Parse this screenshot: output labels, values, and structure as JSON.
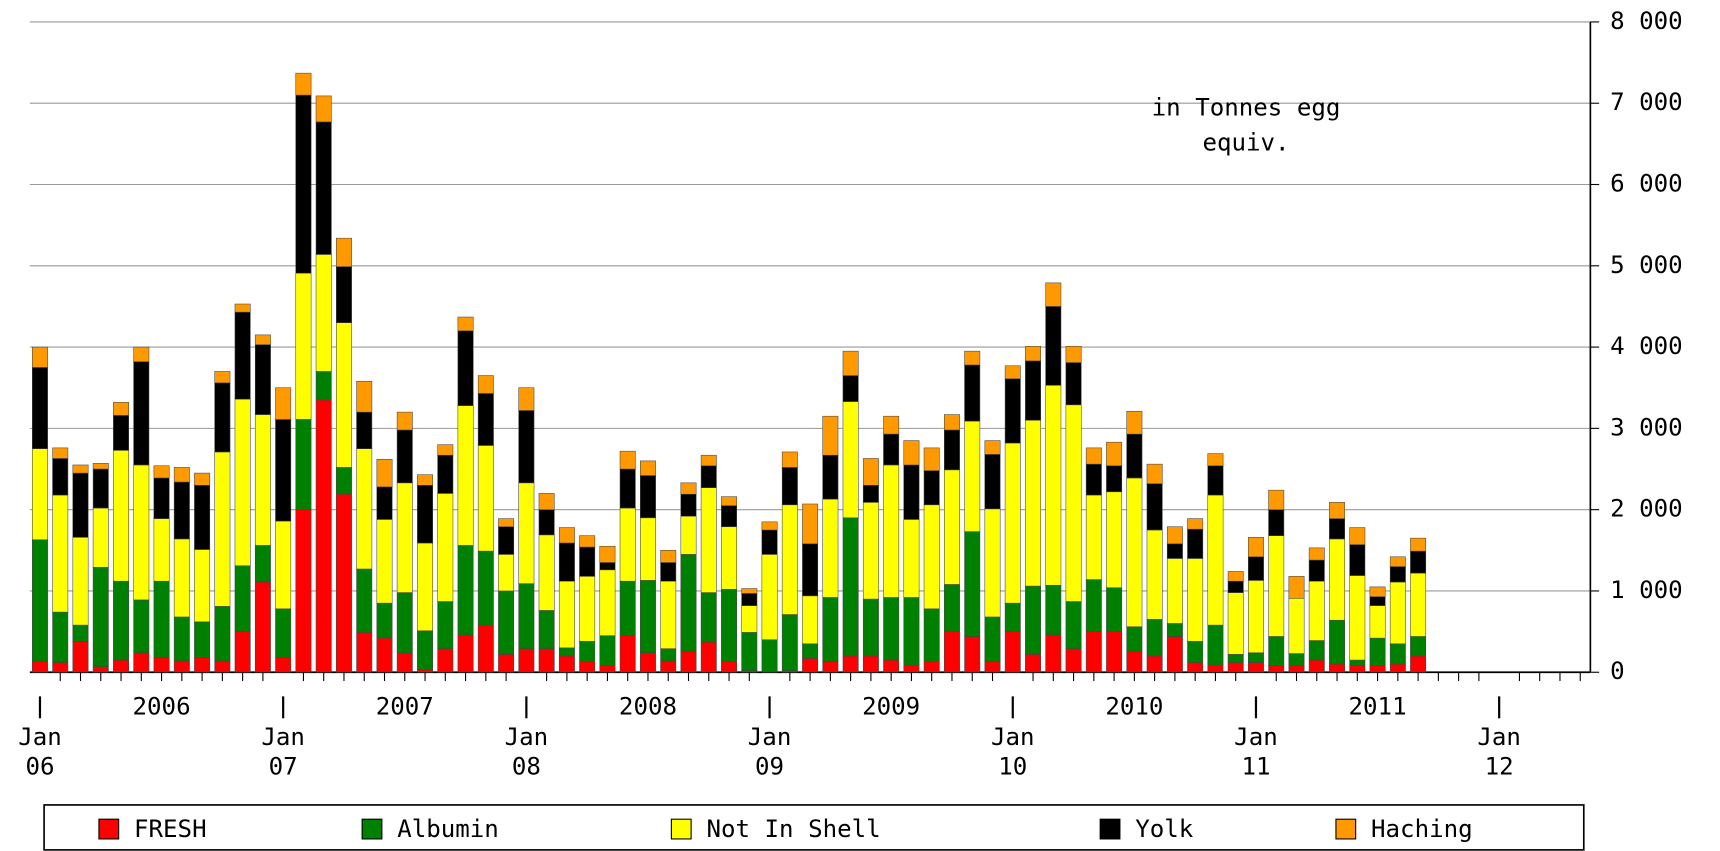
{
  "chart_data": {
    "type": "stacked_bar",
    "annotation": [
      "in Tonnes egg",
      "equiv."
    ],
    "categories": [
      "Jan 06",
      null,
      null,
      null,
      null,
      null,
      null,
      null,
      null,
      null,
      null,
      null,
      "Jan 07",
      null,
      null,
      null,
      null,
      null,
      null,
      null,
      null,
      null,
      null,
      null,
      "Jan 08",
      null,
      null,
      null,
      null,
      null,
      null,
      null,
      null,
      null,
      null,
      null,
      "Jan 09",
      null,
      null,
      null,
      null,
      null,
      null,
      null,
      null,
      null,
      null,
      null,
      "Jan 10",
      null,
      null,
      null,
      null,
      null,
      null,
      null,
      null,
      null,
      null,
      null,
      "Jan 11",
      null,
      null,
      null,
      null,
      null,
      null,
      null,
      null,
      null,
      null,
      null,
      "Jan 12",
      null,
      null,
      null,
      null
    ],
    "years": [
      "2006",
      "2007",
      "2008",
      "2009",
      "2010",
      "2011"
    ],
    "series": [
      {
        "name": "FRESH",
        "color": "#ff0000",
        "values": [
          130,
          120,
          380,
          70,
          150,
          240,
          180,
          140,
          180,
          140,
          500,
          1110,
          180,
          2000,
          3350,
          2190,
          490,
          420,
          240,
          30,
          290,
          460,
          580,
          220,
          290,
          290,
          200,
          130,
          80,
          450,
          240,
          140,
          260,
          370,
          130,
          20,
          10,
          20,
          170,
          130,
          200,
          200,
          150,
          90,
          130,
          500,
          440,
          130,
          500,
          220,
          460,
          290,
          500,
          500,
          260,
          200,
          440,
          120,
          90,
          120,
          120,
          80,
          80,
          150,
          100,
          80,
          80,
          100,
          200,
          null,
          null,
          null,
          null,
          null,
          null,
          null,
          null
        ]
      },
      {
        "name": "Albumin",
        "color": "#008000",
        "values": [
          1500,
          620,
          200,
          1220,
          970,
          650,
          940,
          540,
          440,
          670,
          810,
          450,
          600,
          1110,
          350,
          330,
          780,
          430,
          740,
          480,
          580,
          1100,
          910,
          780,
          800,
          470,
          100,
          250,
          370,
          670,
          890,
          150,
          1190,
          610,
          890,
          470,
          390,
          690,
          180,
          790,
          1700,
          700,
          770,
          830,
          650,
          580,
          1290,
          550,
          350,
          840,
          610,
          580,
          640,
          540,
          300,
          450,
          160,
          260,
          490,
          100,
          120,
          360,
          150,
          240,
          540,
          70,
          340,
          250,
          240,
          null,
          null,
          null,
          null,
          null,
          null,
          null,
          null
        ]
      },
      {
        "name": "Not In Shell",
        "color": "#ffff00",
        "values": [
          1120,
          1440,
          1080,
          730,
          1610,
          1660,
          770,
          960,
          890,
          1900,
          2050,
          1610,
          1080,
          1800,
          1440,
          1780,
          1480,
          1030,
          1350,
          1080,
          1330,
          1720,
          1300,
          450,
          1240,
          930,
          820,
          800,
          810,
          900,
          770,
          830,
          470,
          1290,
          770,
          330,
          1050,
          1350,
          590,
          1210,
          1430,
          1190,
          1630,
          960,
          1280,
          1410,
          1360,
          1330,
          1970,
          2040,
          2460,
          2420,
          1040,
          1180,
          1830,
          1100,
          800,
          1020,
          1600,
          760,
          890,
          1240,
          680,
          730,
          1000,
          1040,
          400,
          760,
          780,
          null,
          null,
          null,
          null,
          null,
          null,
          null,
          null
        ]
      },
      {
        "name": "Yolk",
        "color": "#000000",
        "values": [
          1000,
          450,
          790,
          480,
          430,
          1270,
          500,
          700,
          790,
          850,
          1070,
          860,
          1250,
          2190,
          1630,
          690,
          450,
          400,
          650,
          710,
          470,
          920,
          640,
          340,
          890,
          310,
          470,
          360,
          90,
          480,
          520,
          230,
          270,
          270,
          260,
          150,
          300,
          460,
          640,
          540,
          320,
          210,
          380,
          670,
          420,
          490,
          690,
          670,
          790,
          730,
          970,
          520,
          380,
          320,
          540,
          570,
          180,
          360,
          360,
          140,
          290,
          320,
          0,
          260,
          250,
          380,
          110,
          190,
          270,
          null,
          null,
          null,
          null,
          null,
          null,
          null,
          null
        ]
      },
      {
        "name": "Haching",
        "color": "#ff9900",
        "values": [
          250,
          130,
          100,
          70,
          160,
          180,
          150,
          180,
          150,
          140,
          100,
          120,
          390,
          270,
          320,
          350,
          380,
          340,
          220,
          130,
          130,
          170,
          220,
          100,
          280,
          200,
          190,
          140,
          200,
          220,
          180,
          150,
          140,
          130,
          110,
          60,
          100,
          190,
          490,
          480,
          300,
          330,
          220,
          300,
          280,
          190,
          170,
          170,
          160,
          180,
          290,
          200,
          200,
          290,
          280,
          240,
          210,
          130,
          150,
          120,
          240,
          240,
          270,
          150,
          200,
          210,
          120,
          120,
          160,
          null,
          null,
          null,
          null,
          null,
          null,
          null,
          null
        ]
      }
    ],
    "ylim": [
      0,
      8000
    ],
    "yticks": [
      0,
      {
        "value": 1000,
        "label": "1 000"
      },
      {
        "value": 2000,
        "label": "2 000"
      },
      {
        "value": 3000,
        "label": "3 000"
      },
      {
        "value": 4000,
        "label": "4 000"
      },
      {
        "value": 5000,
        "label": "5 000"
      },
      {
        "value": 6000,
        "label": "6 000"
      },
      {
        "value": 7000,
        "label": "7 000"
      },
      {
        "value": 8000,
        "label": "8 000"
      }
    ],
    "grid": true,
    "legend": "bottom"
  }
}
